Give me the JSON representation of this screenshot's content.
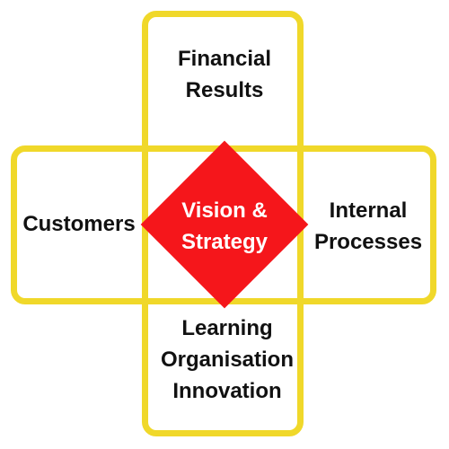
{
  "diagram": {
    "center": {
      "lines": [
        "Vision &",
        "Strategy"
      ],
      "color": "#f5161b"
    },
    "top": {
      "lines": [
        "Financial",
        "Results"
      ]
    },
    "left": {
      "lines": [
        "Customers"
      ]
    },
    "right": {
      "lines": [
        "Internal",
        "Processes"
      ]
    },
    "bottom": {
      "lines": [
        "Learning",
        "Organisation",
        "Innovation"
      ]
    },
    "frame_color": "#f0d82a"
  }
}
